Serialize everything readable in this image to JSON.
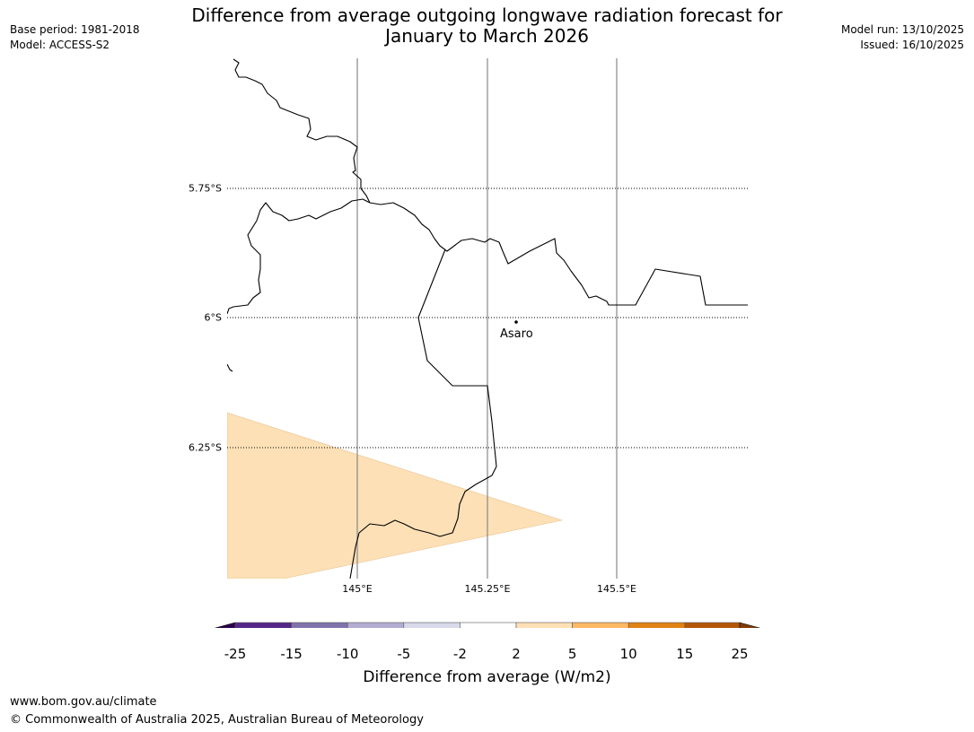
{
  "header": {
    "title_line1": "Difference from average outgoing longwave radiation forecast for",
    "title_line2": "January to March 2026",
    "base_period": "Base period: 1981-2018",
    "model": "Model: ACCESS-S2",
    "model_run": "Model run: 13/10/2025",
    "issued": "Issued: 16/10/2025"
  },
  "map": {
    "lat_labels": [
      "5.75°S",
      "6°S",
      "6.25°S"
    ],
    "lon_labels": [
      "145°E",
      "145.25°E",
      "145.5°E"
    ],
    "place": {
      "name": "Asaro"
    },
    "forecast_category_shown": "2 to 5",
    "forecast_color": "#fde0b6"
  },
  "colorbar": {
    "ticks": [
      "-25",
      "-15",
      "-10",
      "-5",
      "-2",
      "2",
      "5",
      "10",
      "15",
      "25"
    ],
    "colors": [
      "#2d004b",
      "#542788",
      "#8073ac",
      "#b2abd2",
      "#d8daeb",
      "#ffffff",
      "#fee0b6",
      "#fdb863",
      "#e08214",
      "#b35806",
      "#7f3b08"
    ],
    "label": "Difference from average (W/m2)"
  },
  "footer": {
    "url": "www.bom.gov.au/climate",
    "copyright": "© Commonwealth of Australia 2025, Australian Bureau of Meteorology"
  }
}
